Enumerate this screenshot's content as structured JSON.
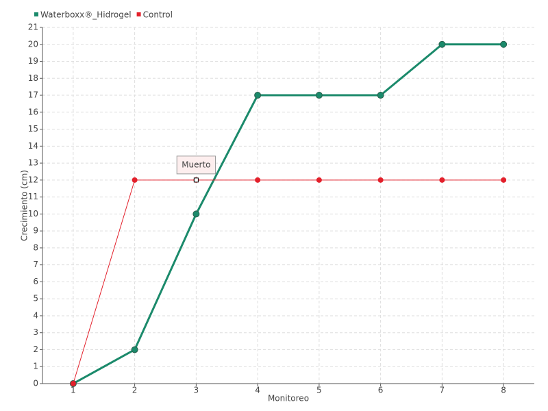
{
  "chart_data": {
    "type": "line",
    "x_label": "Monitoreo",
    "y_label": "Crecimiento (cm)",
    "x": [
      1,
      2,
      3,
      4,
      5,
      6,
      7,
      8
    ],
    "series": [
      {
        "name": "Waterboxx®_Hidrogel",
        "color": "#1b8a6b",
        "values": [
          0,
          2,
          10,
          17,
          17,
          17,
          20,
          20
        ]
      },
      {
        "name": "Control",
        "color": "#e3202b",
        "values": [
          0,
          12,
          12,
          12,
          12,
          12,
          12,
          12
        ]
      }
    ],
    "xlim": [
      0.5,
      8.5
    ],
    "xticks": [
      1,
      2,
      3,
      4,
      5,
      6,
      7,
      8
    ],
    "ylim": [
      0,
      21
    ],
    "yticks": [
      0,
      1,
      2,
      3,
      4,
      5,
      6,
      7,
      8,
      9,
      10,
      11,
      12,
      13,
      14,
      15,
      16,
      17,
      18,
      19,
      20,
      21
    ],
    "grid": true,
    "legend": "top-left",
    "annotations": [
      {
        "text": "Muerto",
        "x": 3,
        "y": 12
      }
    ]
  }
}
